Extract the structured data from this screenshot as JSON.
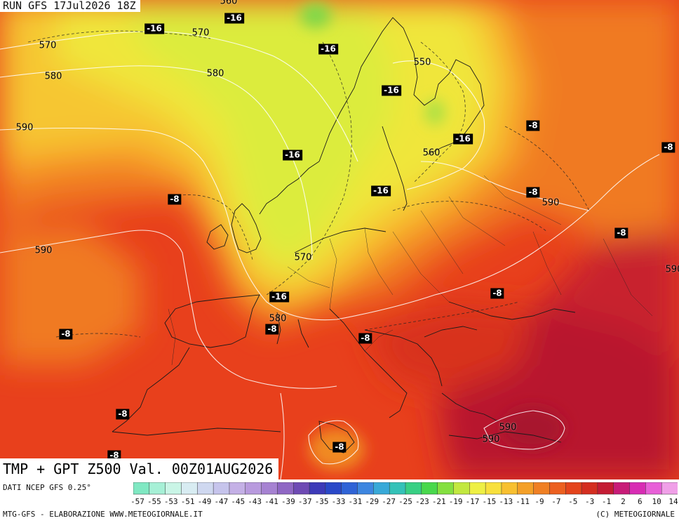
{
  "header": {
    "run_label": "RUN GFS 17Jul2026 18Z"
  },
  "title": "TMP + GPT Z500 Val. 00Z01AUG2026",
  "footer": {
    "source": "DATI NCEP GFS 0.25°",
    "credit": "MTG-GFS - ELABORAZIONE WWW.METEOGIORNALE.IT",
    "copyright": "(C) METEOGIORNALE"
  },
  "temperature_labels": [
    "-16",
    "-16",
    "-16",
    "-16",
    "-16",
    "-16",
    "-16",
    "-8",
    "-8",
    "-8",
    "-8",
    "-8",
    "-8",
    "-8",
    "-8",
    "-8",
    "-8",
    "-8",
    "-8"
  ],
  "geopotential_labels": [
    "570",
    "570",
    "580",
    "580",
    "590",
    "590",
    "550",
    "560",
    "570",
    "580",
    "590",
    "590",
    "590",
    "590",
    "560"
  ],
  "color_scale": {
    "ticks": [
      "-57",
      "-55",
      "-53",
      "-51",
      "-49",
      "-47",
      "-45",
      "-43",
      "-41",
      "-39",
      "-37",
      "-35",
      "-33",
      "-31",
      "-29",
      "-27",
      "-25",
      "-23",
      "-21",
      "-19",
      "-17",
      "-15",
      "-13",
      "-11",
      "-9",
      "-7",
      "-5",
      "-3",
      "-1",
      "2",
      "6",
      "10",
      "14"
    ],
    "colors": [
      "#7fe8c2",
      "#a6f0d6",
      "#c9f5e6",
      "#d8ecf2",
      "#cfd8f0",
      "#c6c4ec",
      "#c4b0e6",
      "#b89ade",
      "#a682d2",
      "#8f67c4",
      "#6e4ab4",
      "#3d3ab8",
      "#2a48c8",
      "#2f63d6",
      "#3d86e0",
      "#38a9d8",
      "#34c2b8",
      "#38d084",
      "#48d84c",
      "#84e040",
      "#c2e840",
      "#eef044",
      "#f8e03c",
      "#f8c030",
      "#f4a028",
      "#f08024",
      "#ec6020",
      "#e4441c",
      "#d42e20",
      "#c41c34",
      "#c81c78",
      "#d82cb4",
      "#e860d8",
      "#f0a0e8"
    ]
  }
}
